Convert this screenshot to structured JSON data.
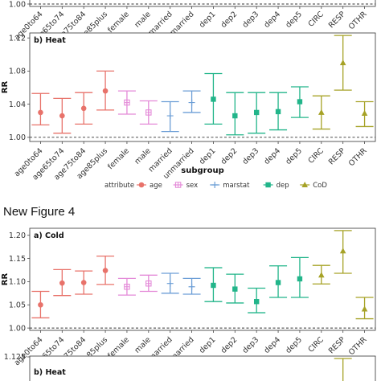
{
  "figure_heading": "New Figure 4",
  "colors": {
    "age": "#E8726A",
    "sex": "#E48AD8",
    "marstat": "#6C9ED6",
    "dep": "#22B58A",
    "CoD": "#A6A226"
  },
  "legend": {
    "title": "attribute",
    "items": [
      {
        "key": "age",
        "label": "age",
        "shape": "circle"
      },
      {
        "key": "sex",
        "label": "sex",
        "shape": "square-cross"
      },
      {
        "key": "marstat",
        "label": "marstat",
        "shape": "plus"
      },
      {
        "key": "dep",
        "label": "dep",
        "shape": "square"
      },
      {
        "key": "CoD",
        "label": "CoD",
        "shape": "triangle"
      }
    ]
  },
  "chart_data": [
    {
      "type": "scatter",
      "panel": "top-cropped",
      "title": "",
      "ylabel": "",
      "xlabel": "",
      "yticks": [
        "1.00"
      ],
      "categories": [
        "age0to64",
        "age65to74",
        "age75to84",
        "age85plus",
        "female",
        "male",
        "married",
        "unmarried",
        "dep1",
        "dep2",
        "dep3",
        "dep4",
        "dep5",
        "CIRC",
        "RESP",
        "OTHR"
      ]
    },
    {
      "type": "scatter",
      "panel": "heat",
      "title": "b) Heat",
      "ylabel": "RR",
      "xlabel": "subgroup",
      "ylim": [
        0.995,
        1.126
      ],
      "yticks": [
        "1.00",
        "1.04",
        "1.08",
        "1.12"
      ],
      "reference_line": 1.0,
      "categories": [
        "age0to64",
        "age65to74",
        "age75to84",
        "age85plus",
        "female",
        "male",
        "married",
        "unmarried",
        "dep1",
        "dep2",
        "dep3",
        "dep4",
        "dep5",
        "CIRC",
        "RESP",
        "OTHR"
      ],
      "attributes": [
        "age",
        "age",
        "age",
        "age",
        "sex",
        "sex",
        "marstat",
        "marstat",
        "dep",
        "dep",
        "dep",
        "dep",
        "dep",
        "CoD",
        "CoD",
        "CoD"
      ],
      "values": [
        1.03,
        1.026,
        1.035,
        1.056,
        1.042,
        1.03,
        1.026,
        1.042,
        1.046,
        1.026,
        1.03,
        1.031,
        1.043,
        1.03,
        1.09,
        1.029
      ],
      "lower": [
        1.015,
        1.005,
        1.016,
        1.033,
        1.028,
        1.016,
        1.007,
        1.03,
        1.016,
        1.003,
        1.005,
        1.009,
        1.024,
        1.01,
        1.057,
        1.013
      ],
      "upper": [
        1.053,
        1.047,
        1.054,
        1.08,
        1.056,
        1.044,
        1.043,
        1.056,
        1.077,
        1.054,
        1.054,
        1.054,
        1.061,
        1.05,
        1.123,
        1.043
      ]
    },
    {
      "type": "scatter",
      "panel": "cold",
      "title": "a) Cold",
      "ylabel": "RR",
      "xlabel": "",
      "ylim": [
        0.995,
        1.215
      ],
      "yticks": [
        "1.00",
        "1.05",
        "1.10",
        "1.15",
        "1.20"
      ],
      "reference_line": 1.0,
      "categories": [
        "age0to64",
        "age65to74",
        "age75to84",
        "age85plus",
        "female",
        "male",
        "married",
        "unmarried",
        "dep1",
        "dep2",
        "dep3",
        "dep4",
        "dep5",
        "CIRC",
        "RESP",
        "OTHR"
      ],
      "attributes": [
        "age",
        "age",
        "age",
        "age",
        "sex",
        "sex",
        "marstat",
        "marstat",
        "dep",
        "dep",
        "dep",
        "dep",
        "dep",
        "CoD",
        "CoD",
        "CoD"
      ],
      "values": [
        1.05,
        1.097,
        1.098,
        1.124,
        1.089,
        1.096,
        1.096,
        1.089,
        1.092,
        1.084,
        1.057,
        1.098,
        1.106,
        1.114,
        1.166,
        1.041
      ],
      "lower": [
        1.022,
        1.07,
        1.073,
        1.094,
        1.071,
        1.079,
        1.075,
        1.073,
        1.057,
        1.054,
        1.033,
        1.066,
        1.066,
        1.095,
        1.118,
        1.02
      ],
      "upper": [
        1.079,
        1.126,
        1.123,
        1.155,
        1.107,
        1.114,
        1.118,
        1.107,
        1.13,
        1.116,
        1.086,
        1.134,
        1.152,
        1.135,
        1.21,
        1.066
      ]
    },
    {
      "type": "scatter",
      "panel": "heat-cropped",
      "title": "b) Heat",
      "ylabel": "",
      "xlabel": "",
      "yticks": [
        "1.125"
      ],
      "categories": [
        "age0to64",
        "age65to74",
        "age75to84",
        "age85plus",
        "female",
        "male",
        "married",
        "unmarried",
        "dep1",
        "dep2",
        "dep3",
        "dep4",
        "dep5",
        "CIRC",
        "RESP",
        "OTHR"
      ]
    }
  ]
}
